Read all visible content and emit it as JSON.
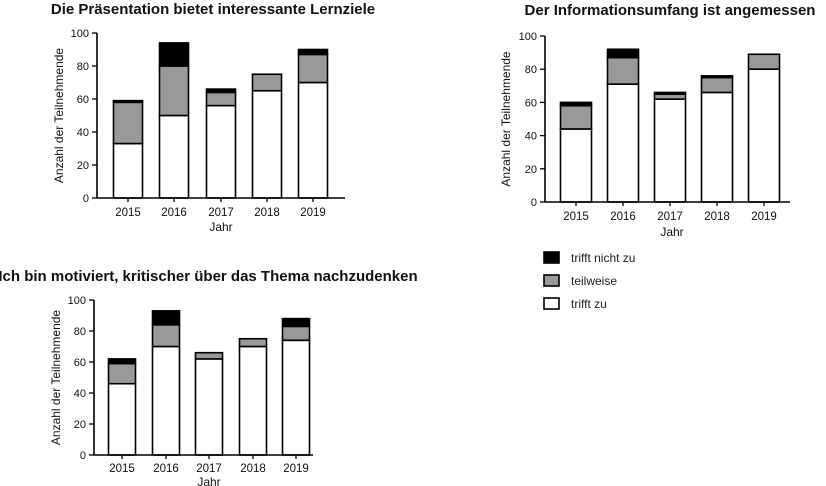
{
  "legend": {
    "items": [
      {
        "name": "trifft nicht zu",
        "color": "#000000"
      },
      {
        "name": "teilweise",
        "color": "#999999"
      },
      {
        "name": "trifft zu",
        "color": "#ffffff"
      }
    ]
  },
  "chart_data": [
    {
      "type": "bar",
      "stacked": true,
      "title": "Die Präsentation bietet interessante Lernziele",
      "xlabel": "Jahr",
      "ylabel": "Anzahl der Teilnehmende",
      "ylim": [
        0,
        100
      ],
      "yticks": [
        "0",
        "20",
        "40",
        "60",
        "80",
        "100"
      ],
      "categories": [
        "2015",
        "2016",
        "2017",
        "2018",
        "2019"
      ],
      "series": [
        {
          "name": "trifft zu",
          "values": [
            33,
            50,
            56,
            65,
            70
          ]
        },
        {
          "name": "teilweise",
          "values": [
            25,
            30,
            8,
            10,
            17
          ]
        },
        {
          "name": "trifft nicht zu",
          "values": [
            1,
            14,
            2,
            0,
            3
          ]
        }
      ]
    },
    {
      "type": "bar",
      "stacked": true,
      "title": "Der Informationsumfang ist angemessen",
      "xlabel": "Jahr",
      "ylabel": "Anzahl der Teilnehmende",
      "ylim": [
        0,
        100
      ],
      "yticks": [
        "0",
        "20",
        "40",
        "60",
        "80",
        "100"
      ],
      "categories": [
        "2015",
        "2016",
        "2017",
        "2018",
        "2019"
      ],
      "series": [
        {
          "name": "trifft zu",
          "values": [
            44,
            71,
            62,
            66,
            80
          ]
        },
        {
          "name": "teilweise",
          "values": [
            14,
            16,
            3,
            9,
            9
          ]
        },
        {
          "name": "trifft nicht zu",
          "values": [
            2,
            5,
            1,
            1,
            0
          ]
        }
      ]
    },
    {
      "type": "bar",
      "stacked": true,
      "title": "Ich bin motiviert, kritischer über das Thema nachzudenken",
      "xlabel": "Jahr",
      "ylabel": "Anzahl der Teilnehmende",
      "ylim": [
        0,
        100
      ],
      "yticks": [
        "0",
        "20",
        "40",
        "60",
        "80",
        "100"
      ],
      "categories": [
        "2015",
        "2016",
        "2017",
        "2018",
        "2019"
      ],
      "series": [
        {
          "name": "trifft zu",
          "values": [
            46,
            70,
            62,
            70,
            74
          ]
        },
        {
          "name": "teilweise",
          "values": [
            13,
            14,
            4,
            5,
            9
          ]
        },
        {
          "name": "trifft nicht zu",
          "values": [
            3,
            9,
            0,
            0,
            5
          ]
        }
      ]
    }
  ]
}
